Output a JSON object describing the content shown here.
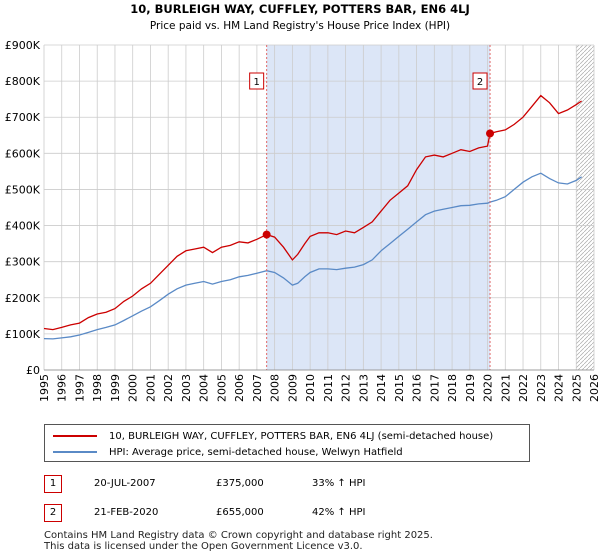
{
  "chart_data": {
    "type": "line",
    "title": "10, BURLEIGH WAY, CUFFLEY, POTTERS BAR, EN6 4LJ",
    "subtitle": "Price paid vs. HM Land Registry's House Price Index (HPI)",
    "xlabel": "",
    "ylabel": "",
    "xlim": [
      1995,
      2026
    ],
    "ylim": [
      0,
      900000
    ],
    "x_ticks": [
      "1995",
      "1996",
      "1997",
      "1998",
      "1999",
      "2000",
      "2001",
      "2002",
      "2003",
      "2004",
      "2005",
      "2006",
      "2007",
      "2008",
      "2009",
      "2010",
      "2011",
      "2012",
      "2013",
      "2014",
      "2015",
      "2016",
      "2017",
      "2018",
      "2019",
      "2020",
      "2021",
      "2022",
      "2023",
      "2024",
      "2025",
      "2026"
    ],
    "y_ticks": [
      {
        "value": 0,
        "label": "£0"
      },
      {
        "value": 100000,
        "label": "£100K"
      },
      {
        "value": 200000,
        "label": "£200K"
      },
      {
        "value": 300000,
        "label": "£300K"
      },
      {
        "value": 400000,
        "label": "£400K"
      },
      {
        "value": 500000,
        "label": "£500K"
      },
      {
        "value": 600000,
        "label": "£600K"
      },
      {
        "value": 700000,
        "label": "£700K"
      },
      {
        "value": 800000,
        "label": "£800K"
      },
      {
        "value": 900000,
        "label": "£900K"
      }
    ],
    "grid": true,
    "shaded_region": {
      "from": 2007.55,
      "to": 2020.14,
      "color": "#dce6f7"
    },
    "future_hatch_from": 2025.0,
    "series": [
      {
        "name": "10, BURLEIGH WAY, CUFFLEY, POTTERS BAR, EN6 4LJ (semi-detached house)",
        "color": "#cc0000",
        "x": [
          1995.0,
          1995.5,
          1996.0,
          1996.5,
          1997.0,
          1997.5,
          1998.0,
          1998.5,
          1999.0,
          1999.5,
          2000.0,
          2000.5,
          2001.0,
          2001.5,
          2002.0,
          2002.5,
          2003.0,
          2003.5,
          2004.0,
          2004.5,
          2005.0,
          2005.5,
          2006.0,
          2006.5,
          2007.0,
          2007.55,
          2008.0,
          2008.5,
          2009.0,
          2009.3,
          2009.7,
          2010.0,
          2010.5,
          2011.0,
          2011.5,
          2012.0,
          2012.5,
          2013.0,
          2013.5,
          2014.0,
          2014.5,
          2015.0,
          2015.5,
          2016.0,
          2016.5,
          2017.0,
          2017.5,
          2018.0,
          2018.5,
          2019.0,
          2019.5,
          2020.0,
          2020.14,
          2020.5,
          2021.0,
          2021.5,
          2022.0,
          2022.5,
          2023.0,
          2023.5,
          2024.0,
          2024.5,
          2025.0,
          2025.3
        ],
        "values": [
          115000,
          112000,
          118000,
          125000,
          130000,
          145000,
          155000,
          160000,
          170000,
          190000,
          205000,
          225000,
          240000,
          265000,
          290000,
          315000,
          330000,
          335000,
          340000,
          325000,
          340000,
          345000,
          355000,
          352000,
          362000,
          375000,
          368000,
          340000,
          305000,
          320000,
          350000,
          370000,
          380000,
          380000,
          375000,
          385000,
          380000,
          395000,
          410000,
          440000,
          470000,
          490000,
          510000,
          555000,
          590000,
          595000,
          590000,
          600000,
          610000,
          605000,
          615000,
          620000,
          655000,
          660000,
          665000,
          680000,
          700000,
          730000,
          760000,
          740000,
          710000,
          720000,
          735000,
          745000
        ]
      },
      {
        "name": "HPI: Average price, semi-detached house, Welwyn Hatfield",
        "color": "#5a8ac6",
        "x": [
          1995.0,
          1995.5,
          1996.0,
          1996.5,
          1997.0,
          1997.5,
          1998.0,
          1998.5,
          1999.0,
          1999.5,
          2000.0,
          2000.5,
          2001.0,
          2001.5,
          2002.0,
          2002.5,
          2003.0,
          2003.5,
          2004.0,
          2004.5,
          2005.0,
          2005.5,
          2006.0,
          2006.5,
          2007.0,
          2007.55,
          2008.0,
          2008.5,
          2009.0,
          2009.3,
          2009.7,
          2010.0,
          2010.5,
          2011.0,
          2011.5,
          2012.0,
          2012.5,
          2013.0,
          2013.5,
          2014.0,
          2014.5,
          2015.0,
          2015.5,
          2016.0,
          2016.5,
          2017.0,
          2017.5,
          2018.0,
          2018.5,
          2019.0,
          2019.5,
          2020.0,
          2020.14,
          2020.5,
          2021.0,
          2021.5,
          2022.0,
          2022.5,
          2023.0,
          2023.5,
          2024.0,
          2024.5,
          2025.0,
          2025.3
        ],
        "values": [
          87000,
          86000,
          89000,
          92000,
          97000,
          104000,
          112000,
          118000,
          125000,
          137000,
          150000,
          163000,
          175000,
          192000,
          210000,
          225000,
          235000,
          240000,
          245000,
          238000,
          245000,
          250000,
          258000,
          262000,
          268000,
          275000,
          270000,
          255000,
          235000,
          240000,
          258000,
          270000,
          280000,
          280000,
          278000,
          282000,
          285000,
          292000,
          305000,
          330000,
          350000,
          370000,
          390000,
          410000,
          430000,
          440000,
          445000,
          450000,
          455000,
          456000,
          460000,
          462000,
          465000,
          470000,
          480000,
          500000,
          520000,
          535000,
          545000,
          530000,
          518000,
          515000,
          525000,
          535000
        ]
      }
    ],
    "annotations": [
      {
        "label": "1",
        "x": 2007.55,
        "value": 375000
      },
      {
        "label": "2",
        "x": 2020.14,
        "value": 655000
      }
    ]
  },
  "legend": {
    "property_label": "10, BURLEIGH WAY, CUFFLEY, POTTERS BAR, EN6 4LJ (semi-detached house)",
    "hpi_label": "HPI: Average price, semi-detached house, Welwyn Hatfield"
  },
  "sales": [
    {
      "num": "1",
      "date": "20-JUL-2007",
      "price": "£375,000",
      "hpi": "33% ↑ HPI"
    },
    {
      "num": "2",
      "date": "21-FEB-2020",
      "price": "£655,000",
      "hpi": "42% ↑ HPI"
    }
  ],
  "footer": {
    "line1": "Contains HM Land Registry data © Crown copyright and database right 2025.",
    "line2": "This data is licensed under the Open Government Licence v3.0."
  }
}
